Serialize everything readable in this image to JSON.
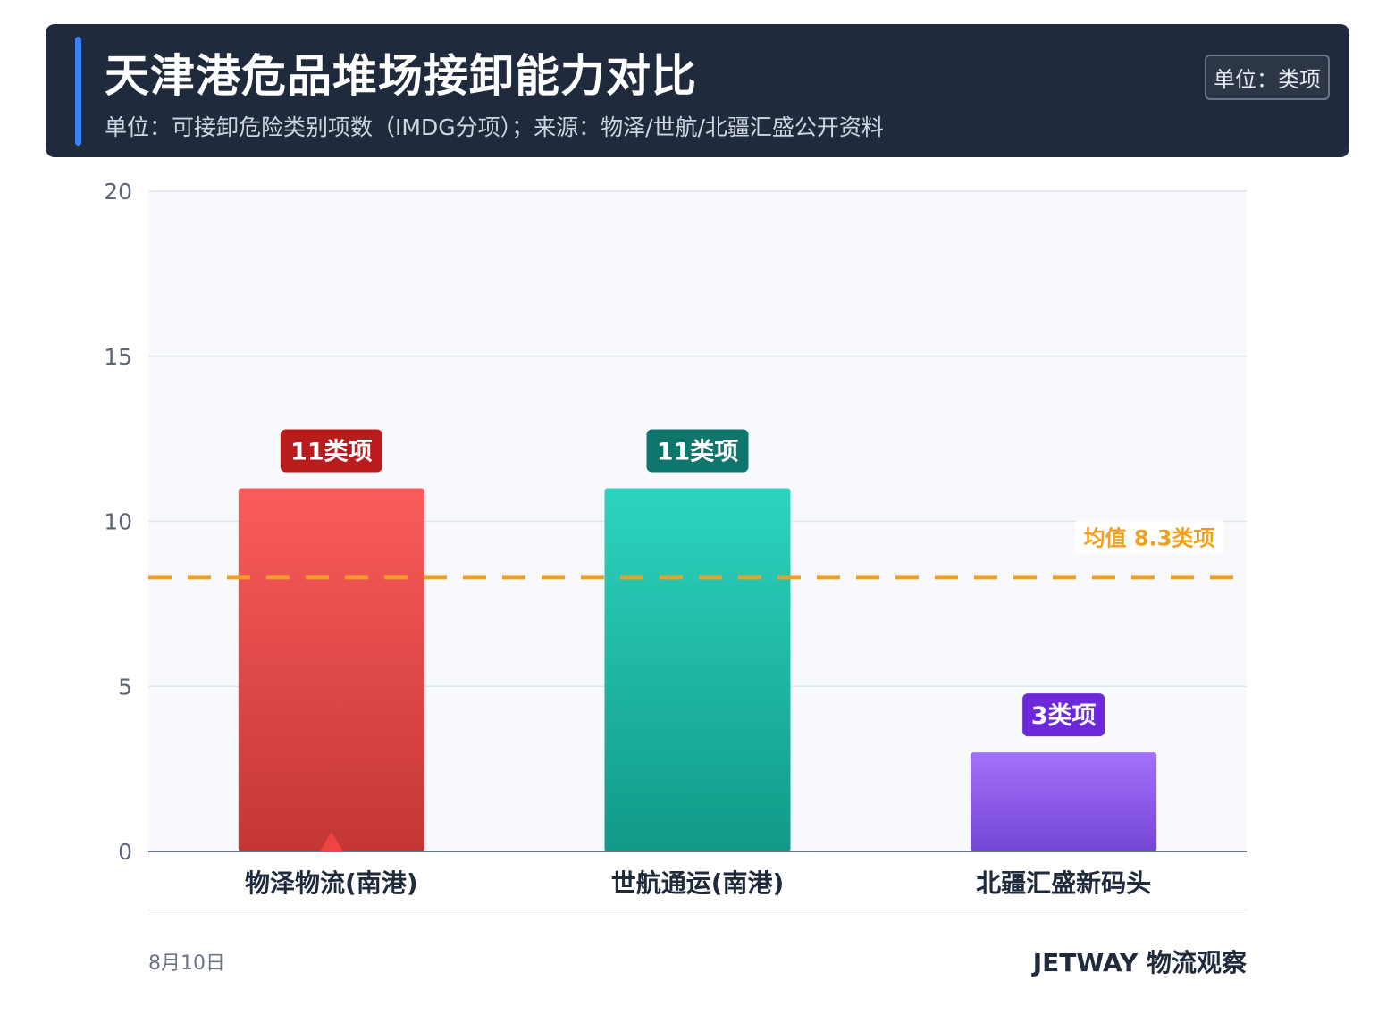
{
  "header": {
    "title": "天津港危品堆场接卸能力对比",
    "subtitle": "单位：可接卸危险类别项数（IMDG分项）；来源：物泽/世航/北疆汇盛公开资料",
    "unit_badge": "单位：类项"
  },
  "chart_data": {
    "type": "bar",
    "categories": [
      "物泽物流(南港)",
      "世航通运(南港)",
      "北疆汇盛新码头"
    ],
    "values": [
      11,
      11,
      3
    ],
    "value_labels": [
      "11类项",
      "11类项",
      "3类项"
    ],
    "ylim": [
      0,
      20
    ],
    "yticks": [
      0,
      5,
      10,
      15,
      20
    ],
    "grid": true,
    "colors": {
      "bars_top": [
        "#fb5c5c",
        "#2dd4bf",
        "#a371fb"
      ],
      "bars_bottom": [
        "#c43636",
        "#119a88",
        "#7446d4"
      ],
      "labels": [
        "#b91c1c",
        "#0f766e",
        "#6d28d9"
      ],
      "average": "#f0a020"
    },
    "average": {
      "value": 8.3,
      "label": "均值 8.3类项"
    },
    "highlight_marker_category": 0
  },
  "footer": {
    "date": "8月10日",
    "brand": "JETWAY 物流观察"
  }
}
